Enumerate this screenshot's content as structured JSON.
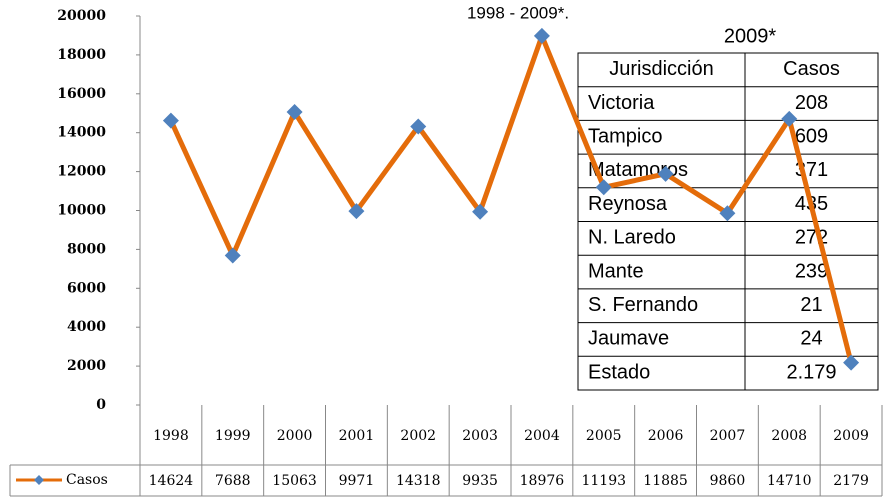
{
  "chart_data": {
    "type": "line",
    "title": "1998 - 2009*.",
    "categories": [
      "1998",
      "1999",
      "2000",
      "2001",
      "2002",
      "2003",
      "2004",
      "2005",
      "2006",
      "2007",
      "2008",
      "2009"
    ],
    "series": [
      {
        "name": "Casos",
        "color": "#E46C0A",
        "marker_color": "#4F81BD",
        "values": [
          14624,
          7688,
          15063,
          9971,
          14318,
          9935,
          18976,
          11193,
          11885,
          9860,
          14710,
          2179
        ]
      }
    ],
    "ylim": [
      0,
      20000
    ],
    "yticks": [
      0,
      2000,
      4000,
      6000,
      8000,
      10000,
      12000,
      14000,
      16000,
      18000,
      20000
    ]
  },
  "inset_table": {
    "title": "2009*",
    "header": [
      "Jurisdicción",
      "Casos"
    ],
    "rows": [
      [
        "Victoria",
        "208"
      ],
      [
        "Tampico",
        "609"
      ],
      [
        "Matamoros",
        "371"
      ],
      [
        "Reynosa",
        "435"
      ],
      [
        "N. Laredo",
        "272"
      ],
      [
        "Mante",
        "239"
      ],
      [
        "S. Fernando",
        "21"
      ],
      [
        "Jaumave",
        "24"
      ],
      [
        "Estado",
        "2.179"
      ]
    ]
  }
}
